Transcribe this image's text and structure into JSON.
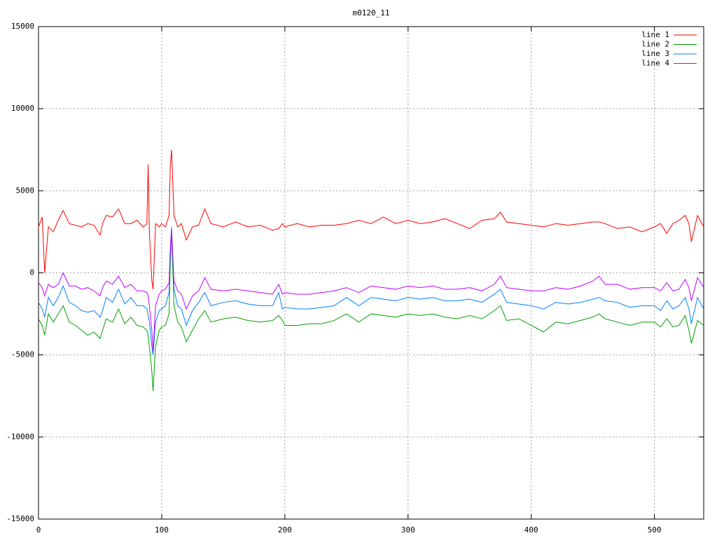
{
  "chart_data": {
    "type": "line",
    "title": "m0120_11",
    "x": [
      0,
      3,
      5,
      8,
      12,
      16,
      20,
      25,
      30,
      35,
      40,
      45,
      50,
      52,
      55,
      60,
      65,
      70,
      75,
      80,
      85,
      88,
      89,
      90,
      92,
      93,
      95,
      98,
      100,
      103,
      106,
      107,
      108,
      110,
      113,
      116,
      120,
      125,
      130,
      135,
      140,
      150,
      160,
      170,
      180,
      190,
      195,
      198,
      200,
      210,
      220,
      230,
      240,
      250,
      260,
      270,
      280,
      290,
      300,
      310,
      320,
      330,
      340,
      350,
      360,
      370,
      375,
      380,
      390,
      400,
      410,
      420,
      430,
      440,
      450,
      455,
      460,
      470,
      480,
      490,
      500,
      505,
      510,
      515,
      520,
      525,
      528,
      530,
      535,
      540
    ],
    "series": [
      {
        "name": "line 1",
        "color": "#ff0000",
        "values": [
          2800,
          3400,
          0,
          2800,
          2500,
          3200,
          3800,
          3000,
          2900,
          2800,
          3000,
          2900,
          2300,
          3000,
          3500,
          3400,
          3900,
          3000,
          3000,
          3200,
          2800,
          3000,
          6600,
          2500,
          -500,
          -1000,
          3000,
          2800,
          3000,
          2800,
          3500,
          6500,
          7500,
          3500,
          2800,
          3000,
          2000,
          2800,
          2900,
          3900,
          3000,
          2800,
          3100,
          2800,
          2900,
          2600,
          2700,
          3000,
          2800,
          3000,
          2800,
          2900,
          2900,
          3000,
          3200,
          3000,
          3400,
          3000,
          3200,
          3000,
          3100,
          3300,
          3000,
          2700,
          3200,
          3300,
          3700,
          3100,
          3000,
          2900,
          2800,
          3000,
          2900,
          3000,
          3100,
          3100,
          3000,
          2700,
          2800,
          2500,
          2800,
          3000,
          2400,
          3000,
          3200,
          3500,
          3000,
          1900,
          3500,
          2800
        ]
      },
      {
        "name": "line 2",
        "color": "#00a000",
        "values": [
          -2800,
          -3200,
          -3800,
          -2500,
          -3000,
          -2500,
          -2000,
          -3000,
          -3200,
          -3500,
          -3800,
          -3600,
          -4000,
          -3500,
          -2800,
          -3000,
          -2200,
          -3100,
          -2700,
          -3200,
          -3300,
          -3500,
          -3800,
          -4500,
          -6000,
          -7200,
          -4500,
          -3500,
          -3300,
          -3200,
          -2500,
          500,
          2500,
          -2000,
          -3000,
          -3300,
          -4200,
          -3500,
          -2800,
          -2300,
          -3000,
          -2800,
          -2700,
          -2900,
          -3000,
          -2900,
          -2600,
          -2900,
          -3200,
          -3200,
          -3100,
          -3100,
          -2900,
          -2500,
          -3000,
          -2500,
          -2600,
          -2700,
          -2500,
          -2600,
          -2500,
          -2700,
          -2800,
          -2600,
          -2800,
          -2300,
          -2000,
          -2900,
          -2800,
          -3200,
          -3600,
          -3000,
          -3100,
          -2900,
          -2700,
          -2500,
          -2800,
          -3000,
          -3200,
          -3000,
          -3000,
          -3300,
          -2800,
          -3300,
          -3200,
          -2600,
          -3500,
          -4300,
          -2900,
          -3200
        ]
      },
      {
        "name": "line 3",
        "color": "#0080ff",
        "values": [
          -1800,
          -2200,
          -2700,
          -1500,
          -2000,
          -1500,
          -800,
          -1800,
          -2000,
          -2300,
          -2400,
          -2300,
          -2700,
          -2300,
          -1500,
          -1800,
          -1000,
          -1900,
          -1500,
          -2000,
          -2000,
          -2200,
          -2600,
          -3000,
          -4500,
          -5000,
          -3000,
          -2300,
          -2200,
          -2000,
          -1200,
          1000,
          2800,
          -1000,
          -2000,
          -2200,
          -3200,
          -2300,
          -1800,
          -1200,
          -2000,
          -1800,
          -1700,
          -1900,
          -2000,
          -2000,
          -1200,
          -2200,
          -2100,
          -2200,
          -2200,
          -2100,
          -2000,
          -1500,
          -2000,
          -1500,
          -1600,
          -1700,
          -1500,
          -1600,
          -1500,
          -1700,
          -1700,
          -1600,
          -1800,
          -1300,
          -1000,
          -1800,
          -1900,
          -2000,
          -2200,
          -1800,
          -1900,
          -1800,
          -1600,
          -1500,
          -1700,
          -1800,
          -2100,
          -2000,
          -2000,
          -2300,
          -1700,
          -2200,
          -2000,
          -1500,
          -2200,
          -3100,
          -1500,
          -2200
        ]
      },
      {
        "name": "line 4",
        "color": "#c000ff",
        "values": [
          -600,
          -900,
          -1400,
          -700,
          -900,
          -700,
          0,
          -800,
          -800,
          -1000,
          -900,
          -1100,
          -1400,
          -900,
          -500,
          -700,
          -200,
          -900,
          -700,
          -1100,
          -1100,
          -1200,
          -1400,
          -2000,
          -3500,
          -4800,
          -2000,
          -1300,
          -1100,
          -1000,
          -600,
          1500,
          2700,
          -500,
          -1100,
          -1300,
          -2200,
          -1400,
          -1100,
          -300,
          -1000,
          -1100,
          -1000,
          -1100,
          -1200,
          -1300,
          -700,
          -1300,
          -1200,
          -1300,
          -1300,
          -1200,
          -1100,
          -900,
          -1200,
          -800,
          -900,
          -1000,
          -800,
          -900,
          -800,
          -1000,
          -1000,
          -900,
          -1100,
          -700,
          -200,
          -900,
          -1000,
          -1100,
          -1100,
          -900,
          -1000,
          -800,
          -500,
          -200,
          -700,
          -700,
          -1000,
          -900,
          -900,
          -1100,
          -600,
          -1100,
          -1000,
          -400,
          -900,
          -1700,
          -300,
          -900
        ]
      }
    ],
    "xlim": [
      0,
      540
    ],
    "xticks": [
      0,
      100,
      200,
      300,
      400,
      500
    ],
    "ylim": [
      -15000,
      15000
    ],
    "yticks": [
      -15000,
      -10000,
      -5000,
      0,
      5000,
      10000,
      15000
    ],
    "grid": true,
    "legend": "top-right"
  }
}
